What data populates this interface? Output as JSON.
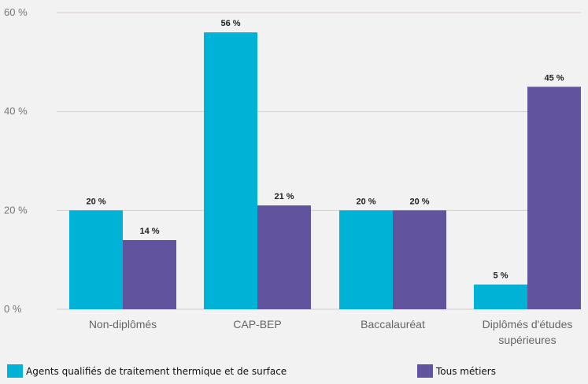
{
  "chart_data": {
    "type": "bar",
    "categories": [
      "Non-diplômés",
      "CAP-BEP",
      "Baccalauréat",
      "Diplômés d'études supérieures"
    ],
    "category_lines": [
      [
        "Non-diplômés"
      ],
      [
        "CAP-BEP"
      ],
      [
        "Baccalauréat"
      ],
      [
        "Diplômés d'études",
        "supérieures"
      ]
    ],
    "series": [
      {
        "name": "Agents qualifiés de traitement thermique et de surface",
        "values": [
          20,
          56,
          20,
          5
        ],
        "labels": [
          "20 %",
          "56 %",
          "20 %",
          "5 %"
        ],
        "color": "#00b3d6"
      },
      {
        "name": "Tous métiers",
        "values": [
          14,
          21,
          20,
          45
        ],
        "labels": [
          "14 %",
          "21 %",
          "20 %",
          "45 %"
        ],
        "color": "#62539f"
      }
    ],
    "yticks": [
      {
        "value": 0,
        "label": "0 %"
      },
      {
        "value": 20,
        "label": "20 %"
      },
      {
        "value": 40,
        "label": "40 %"
      },
      {
        "value": 60,
        "label": "60 %"
      }
    ],
    "ylim": [
      0,
      60
    ],
    "grid": true,
    "gridline_color": "#d9c6da",
    "legend_position": "bottom",
    "title": "",
    "xlabel": "",
    "ylabel": ""
  }
}
